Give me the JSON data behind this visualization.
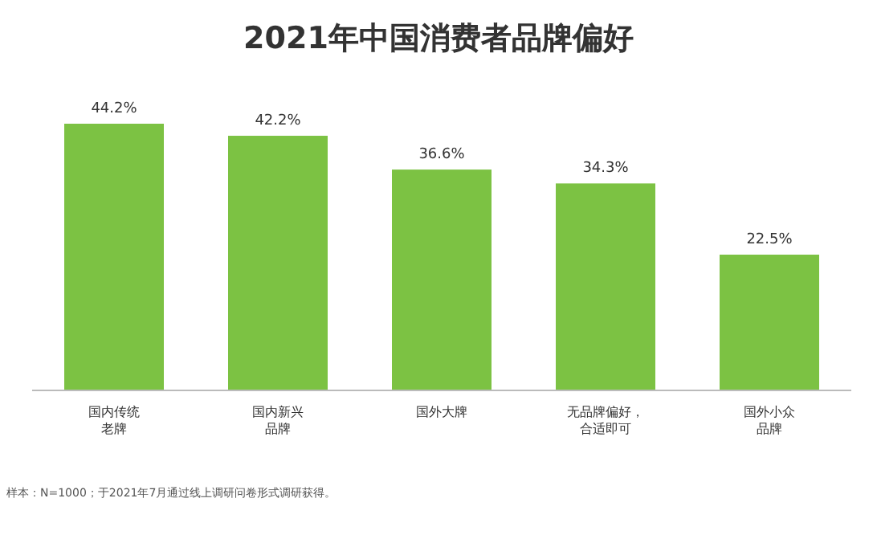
{
  "chart_data": {
    "type": "bar",
    "title": "2021年中国消费者品牌偏好",
    "categories": [
      "国内传统老牌",
      "国内新兴品牌",
      "国外大牌",
      "无品牌偏好，合适即可",
      "国外小众品牌"
    ],
    "values": [
      44.2,
      42.2,
      36.6,
      34.3,
      22.5
    ],
    "value_labels": [
      "44.2%",
      "42.2%",
      "36.6%",
      "34.3%",
      "22.5%"
    ],
    "color": "#7cc243",
    "annotations": [
      "样本：N=1000；于2021年7月通过线上调研问卷形式调研获得。"
    ]
  }
}
